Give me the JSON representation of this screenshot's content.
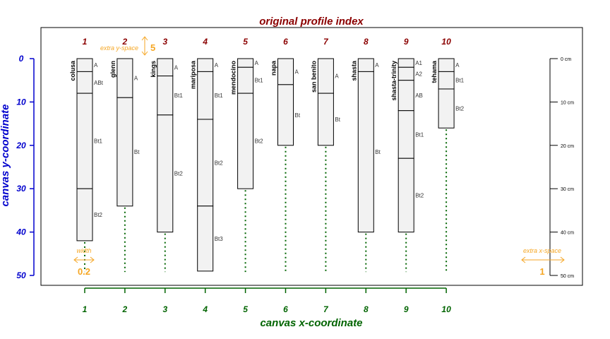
{
  "chart_data": {
    "type": "table",
    "title": "original profile index",
    "xlabel": "canvas x-coordinate",
    "ylabel": "canvas y-coordinate",
    "ylim": [
      0,
      50
    ],
    "y_ticks": [
      "0",
      "10",
      "20",
      "30",
      "40",
      "50"
    ],
    "x_ticks": [
      "1",
      "2",
      "3",
      "4",
      "5",
      "6",
      "7",
      "8",
      "9",
      "10"
    ],
    "depth_unit": "cm",
    "depth_axis_ticks": [
      {
        "value": 0,
        "label": "0 cm"
      },
      {
        "value": 10,
        "label": "10 cm"
      },
      {
        "value": 20,
        "label": "20 cm"
      },
      {
        "value": 30,
        "label": "30 cm"
      },
      {
        "value": 40,
        "label": "40 cm"
      },
      {
        "value": 50,
        "label": "50 cm"
      }
    ],
    "annotations": {
      "extra_y_space_label": "extra y-space",
      "extra_y_space_value": "5",
      "width_label": "width",
      "width_value": "0.2",
      "extra_x_space_label": "extra x-space",
      "extra_x_space_value": "1"
    },
    "profiles": [
      {
        "index": "1",
        "x": 1,
        "name": "colusa",
        "horizons": [
          {
            "name": "A",
            "top": 0,
            "bottom": 3
          },
          {
            "name": "ABt",
            "top": 3,
            "bottom": 8
          },
          {
            "name": "Bt1",
            "top": 8,
            "bottom": 30
          },
          {
            "name": "Bt2",
            "top": 30,
            "bottom": 42
          }
        ]
      },
      {
        "index": "2",
        "x": 2,
        "name": "glenn",
        "horizons": [
          {
            "name": "A",
            "top": 0,
            "bottom": 9
          },
          {
            "name": "Bt",
            "top": 9,
            "bottom": 34
          }
        ]
      },
      {
        "index": "3",
        "x": 3,
        "name": "kings",
        "horizons": [
          {
            "name": "A",
            "top": 0,
            "bottom": 4
          },
          {
            "name": "Bt1",
            "top": 4,
            "bottom": 13
          },
          {
            "name": "Bt2",
            "top": 13,
            "bottom": 40
          }
        ]
      },
      {
        "index": "4",
        "x": 4,
        "name": "mariposa",
        "horizons": [
          {
            "name": "A",
            "top": 0,
            "bottom": 3
          },
          {
            "name": "Bt1",
            "top": 3,
            "bottom": 14
          },
          {
            "name": "Bt2",
            "top": 14,
            "bottom": 34
          },
          {
            "name": "Bt3",
            "top": 34,
            "bottom": 49
          }
        ]
      },
      {
        "index": "5",
        "x": 5,
        "name": "mendocino",
        "horizons": [
          {
            "name": "A",
            "top": 0,
            "bottom": 2
          },
          {
            "name": "Bt1",
            "top": 2,
            "bottom": 8
          },
          {
            "name": "Bt2",
            "top": 8,
            "bottom": 30
          }
        ]
      },
      {
        "index": "6",
        "x": 6,
        "name": "napa",
        "horizons": [
          {
            "name": "A",
            "top": 0,
            "bottom": 6
          },
          {
            "name": "Bt",
            "top": 6,
            "bottom": 20
          }
        ]
      },
      {
        "index": "7",
        "x": 7,
        "name": "san benito",
        "horizons": [
          {
            "name": "A",
            "top": 0,
            "bottom": 8
          },
          {
            "name": "Bt",
            "top": 8,
            "bottom": 20
          }
        ]
      },
      {
        "index": "8",
        "x": 8,
        "name": "shasta",
        "horizons": [
          {
            "name": "A",
            "top": 0,
            "bottom": 3
          },
          {
            "name": "Bt",
            "top": 3,
            "bottom": 40
          }
        ]
      },
      {
        "index": "9",
        "x": 9,
        "name": "shasta-trinity",
        "horizons": [
          {
            "name": "A1",
            "top": 0,
            "bottom": 2
          },
          {
            "name": "A2",
            "top": 2,
            "bottom": 5
          },
          {
            "name": "AB",
            "top": 5,
            "bottom": 12
          },
          {
            "name": "Bt1",
            "top": 12,
            "bottom": 23
          },
          {
            "name": "Bt2",
            "top": 23,
            "bottom": 40
          }
        ]
      },
      {
        "index": "10",
        "x": 10,
        "name": "tehama",
        "horizons": [
          {
            "name": "A",
            "top": 0,
            "bottom": 3
          },
          {
            "name": "Bt1",
            "top": 3,
            "bottom": 7
          },
          {
            "name": "Bt2",
            "top": 7,
            "bottom": 16
          }
        ]
      }
    ]
  },
  "colors": {
    "title": "#8b0000",
    "x_axis": "#006400",
    "y_axis": "#0000cd",
    "annotation": "#f5a623",
    "profile_fill": "#f2f2f2",
    "leader_line": "#006400"
  }
}
